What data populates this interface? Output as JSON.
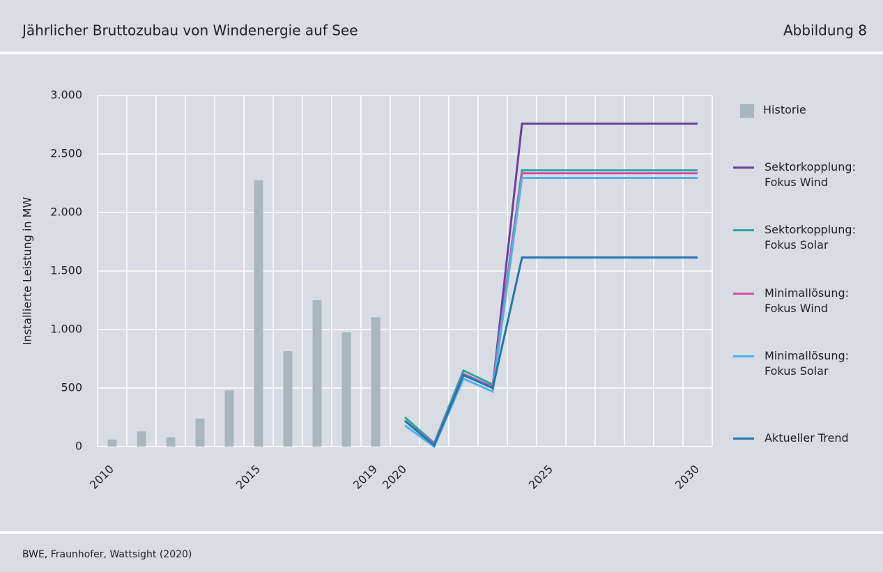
{
  "header": {
    "title": "Jährlicher Bruttozubau von Windenergie auf See",
    "figure": "Abbildung 8"
  },
  "footer": {
    "source": "BWE, Fraunhofer, Wattsight (2020)"
  },
  "chart_data": {
    "type": "bar+line",
    "y_label": "Installierte Leistung in MW",
    "categories": [
      "2010",
      null,
      null,
      null,
      null,
      "2015",
      null,
      null,
      null,
      "2019",
      "2020",
      null,
      null,
      null,
      null,
      "2025",
      null,
      null,
      null,
      null,
      "2030"
    ],
    "ylim": [
      0,
      3000
    ],
    "yticks": [
      0,
      500,
      {
        "value": 1000,
        "label": "1.000"
      },
      {
        "value": 1500,
        "label": "1.500"
      },
      {
        "value": 2000,
        "label": "2.000"
      },
      {
        "value": 2500,
        "label": "2.500"
      },
      {
        "value": 3000,
        "label": "3.000"
      }
    ],
    "grid": true,
    "series": [
      {
        "name": "Historie",
        "type": "bar",
        "color": "#a9b6bc",
        "values": [
          60,
          130,
          80,
          240,
          480,
          2275,
          815,
          1250,
          975,
          1105,
          null,
          null,
          null,
          null,
          null,
          null,
          null,
          null,
          null,
          null,
          null
        ]
      },
      {
        "name": "Sektorkopplung: Fokus Wind",
        "type": "line",
        "color": "#6b3fa0",
        "values": [
          null,
          null,
          null,
          null,
          null,
          null,
          null,
          null,
          null,
          null,
          220,
          20,
          620,
          510,
          2760,
          2760,
          2760,
          2760,
          2760,
          2760,
          2760
        ]
      },
      {
        "name": "Sektorkopplung: Fokus Solar",
        "type": "line",
        "color": "#2aa6a0",
        "values": [
          null,
          null,
          null,
          null,
          null,
          null,
          null,
          null,
          null,
          null,
          250,
          30,
          650,
          530,
          2360,
          2360,
          2360,
          2360,
          2360,
          2360,
          2360
        ]
      },
      {
        "name": "Minimallösung: Fokus Wind",
        "type": "line",
        "color": "#d44fa8",
        "values": [
          null,
          null,
          null,
          null,
          null,
          null,
          null,
          null,
          null,
          null,
          220,
          20,
          620,
          510,
          2335,
          2335,
          2335,
          2335,
          2335,
          2335,
          2335
        ]
      },
      {
        "name": "Minimallösung: Fokus Solar",
        "type": "line",
        "color": "#4fb3e8",
        "values": [
          null,
          null,
          null,
          null,
          null,
          null,
          null,
          null,
          null,
          null,
          180,
          0,
          580,
          470,
          2295,
          2295,
          2295,
          2295,
          2295,
          2295,
          2295
        ]
      },
      {
        "name": "Aktueller Trend",
        "type": "line",
        "color": "#1f78b4",
        "values": [
          null,
          null,
          null,
          null,
          null,
          null,
          null,
          null,
          null,
          null,
          220,
          10,
          610,
          500,
          1615,
          1615,
          1615,
          1615,
          1615,
          1615,
          1615
        ]
      }
    ]
  }
}
